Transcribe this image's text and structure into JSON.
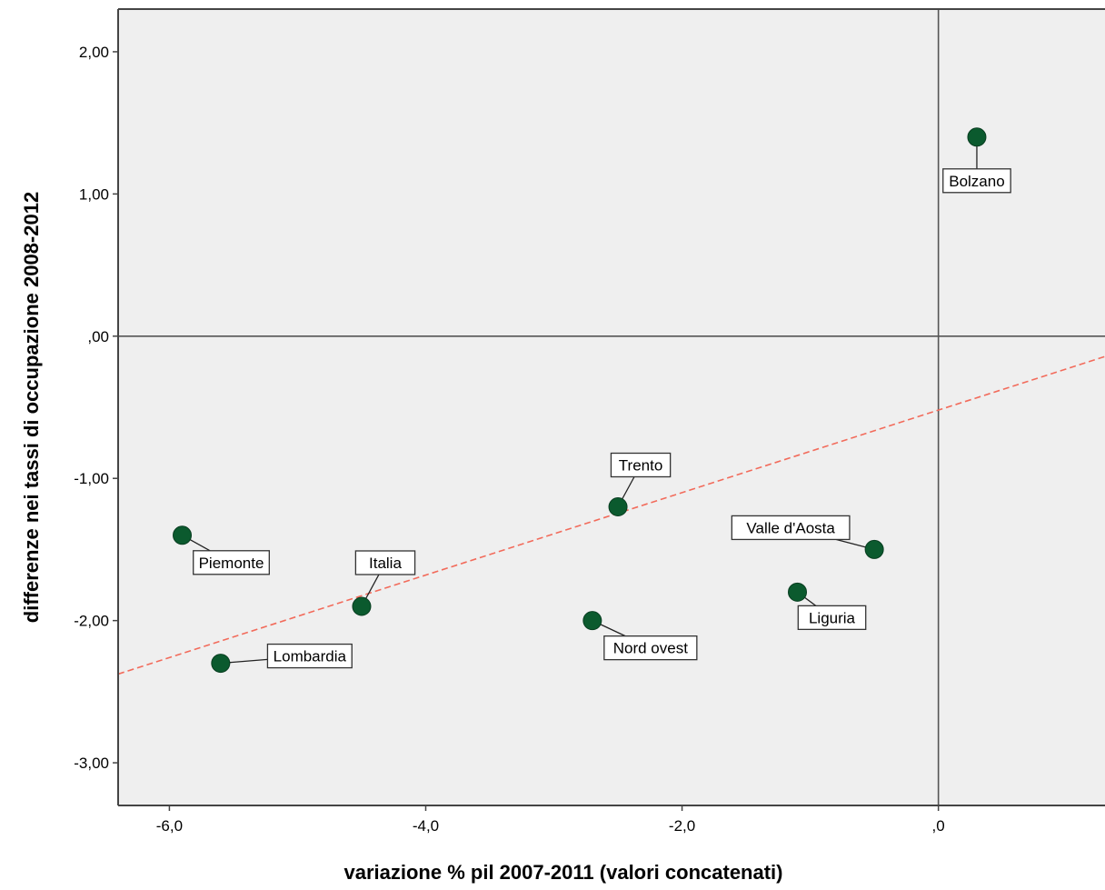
{
  "chart_data": {
    "type": "scatter",
    "xlabel": "variazione % pil 2007-2011 (valori concatenati)",
    "ylabel": "differenze nei tassi di occupazione 2008-2012",
    "xlim": [
      -6.4,
      1.3
    ],
    "ylim": [
      -3.3,
      2.3
    ],
    "x_ticks": [
      {
        "value": -6,
        "label": "-6,0"
      },
      {
        "value": -4,
        "label": "-4,0"
      },
      {
        "value": -2,
        "label": "-2,0"
      },
      {
        "value": 0,
        "label": ",0"
      }
    ],
    "y_ticks": [
      {
        "value": 2,
        "label": "2,00"
      },
      {
        "value": 1,
        "label": "1,00"
      },
      {
        "value": 0,
        "label": ",00"
      },
      {
        "value": -1,
        "label": "-1,00"
      },
      {
        "value": -2,
        "label": "-2,00"
      },
      {
        "value": -3,
        "label": "-3,00"
      }
    ],
    "reference_lines": {
      "x": 0,
      "y": 0
    },
    "points": [
      {
        "label": "Bolzano",
        "x": 0.3,
        "y": 1.4
      },
      {
        "label": "Trento",
        "x": -2.5,
        "y": -1.2
      },
      {
        "label": "Valle d'Aosta",
        "x": -0.5,
        "y": -1.5
      },
      {
        "label": "Piemonte",
        "x": -5.9,
        "y": -1.4
      },
      {
        "label": "Italia",
        "x": -4.5,
        "y": -1.9
      },
      {
        "label": "Liguria",
        "x": -1.1,
        "y": -1.8
      },
      {
        "label": "Nord ovest",
        "x": -2.7,
        "y": -2.0
      },
      {
        "label": "Lombardia",
        "x": -5.6,
        "y": -2.3
      }
    ],
    "fit_line": {
      "slope": 0.29,
      "intercept": -0.52,
      "style": "dashed"
    },
    "grid": false,
    "colors": {
      "plot_background": "#efefef",
      "point": "#0b5a2e",
      "fit_line": "#f26b5b",
      "axis": "#444444"
    }
  }
}
